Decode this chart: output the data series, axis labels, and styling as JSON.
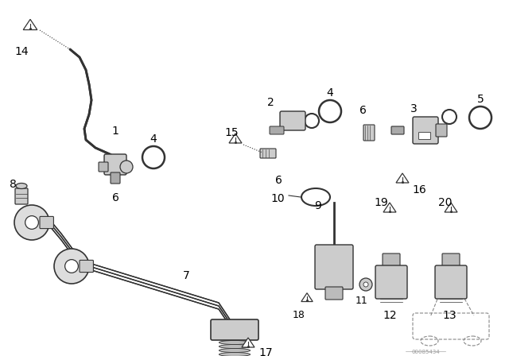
{
  "bg_color": "#ffffff",
  "line_color": "#333333",
  "label_color": "#000000",
  "figsize": [
    6.4,
    4.48
  ],
  "dpi": 100,
  "watermark": "00085434"
}
